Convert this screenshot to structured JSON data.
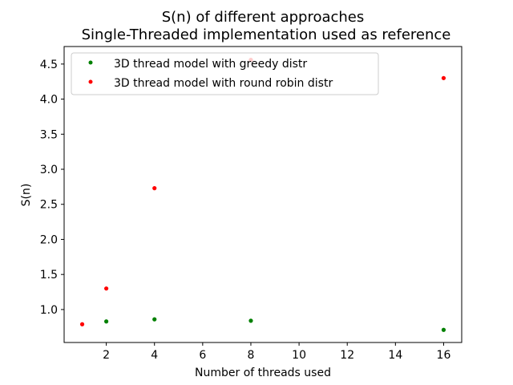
{
  "chart_data": {
    "type": "scatter",
    "title": "S(n) of different approaches",
    "subtitle": "Single-Threaded implementation used as reference",
    "xlabel": "Number of threads used",
    "ylabel": "S(n)",
    "xlim": [
      0.25,
      16.75
    ],
    "ylim": [
      0.53,
      4.75
    ],
    "xticks": [
      2,
      4,
      6,
      8,
      10,
      12,
      14,
      16
    ],
    "yticks": [
      1.0,
      1.5,
      2.0,
      2.5,
      3.0,
      3.5,
      4.0,
      4.5
    ],
    "grid": false,
    "legend_position": "top-left",
    "series": [
      {
        "name": "3D thread model with greedy distr",
        "color": "#008000",
        "x": [
          2,
          4,
          8,
          16
        ],
        "y": [
          0.83,
          0.86,
          0.84,
          0.71
        ]
      },
      {
        "name": "3D thread model with round robin distr",
        "color": "#ff0000",
        "x": [
          1,
          2,
          4,
          8,
          16
        ],
        "y": [
          0.79,
          1.3,
          2.73,
          4.56,
          4.3
        ]
      }
    ]
  }
}
